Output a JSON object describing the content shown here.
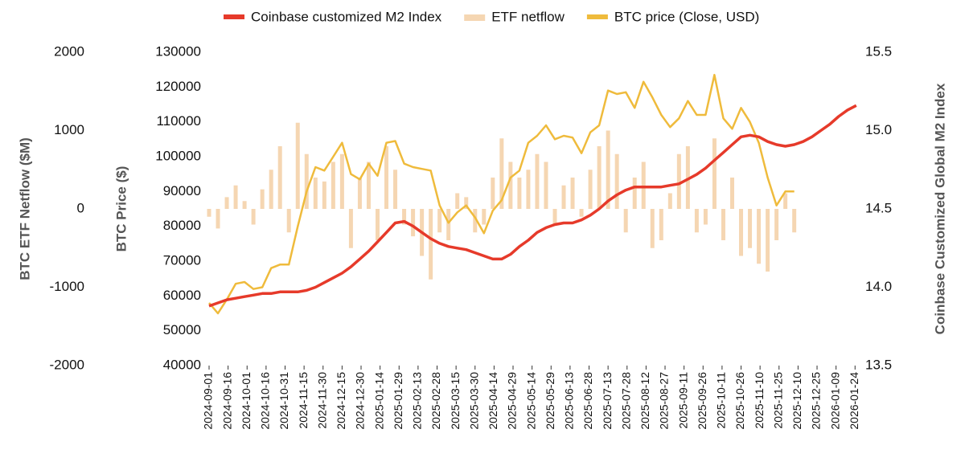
{
  "chart_data": {
    "type": "line",
    "x": [
      "2024-09-01",
      "2024-09-08",
      "2024-09-15",
      "2024-09-22",
      "2024-09-29",
      "2024-10-06",
      "2024-10-13",
      "2024-10-20",
      "2024-10-27",
      "2024-11-03",
      "2024-11-10",
      "2024-11-17",
      "2024-11-24",
      "2024-12-01",
      "2024-12-08",
      "2024-12-15",
      "2024-12-22",
      "2024-12-29",
      "2025-01-05",
      "2025-01-12",
      "2025-01-19",
      "2025-01-26",
      "2025-02-02",
      "2025-02-09",
      "2025-02-16",
      "2025-02-23",
      "2025-03-02",
      "2025-03-09",
      "2025-03-16",
      "2025-03-23",
      "2025-03-30",
      "2025-04-06",
      "2025-04-13",
      "2025-04-20",
      "2025-04-27",
      "2025-05-04",
      "2025-05-11",
      "2025-05-18",
      "2025-05-25",
      "2025-06-01",
      "2025-06-08",
      "2025-06-15",
      "2025-06-22",
      "2025-06-29",
      "2025-07-06",
      "2025-07-13",
      "2025-07-20",
      "2025-07-27",
      "2025-08-03",
      "2025-08-10",
      "2025-08-17",
      "2025-08-24",
      "2025-08-31",
      "2025-09-07",
      "2025-09-14",
      "2025-09-21",
      "2025-09-28",
      "2025-10-05",
      "2025-10-12",
      "2025-10-19",
      "2025-10-26",
      "2025-11-02",
      "2025-11-09",
      "2025-11-16",
      "2025-11-23",
      "2025-11-30",
      "2025-12-07",
      "2025-12-14",
      "2025-12-21",
      "2025-12-28",
      "2026-01-04",
      "2026-01-11",
      "2026-01-18",
      "2026-01-25"
    ],
    "xlim": [
      "2024-09-01",
      "2026-01-27"
    ],
    "xticks": [
      "2024-09-01",
      "2024-09-16",
      "2024-10-01",
      "2024-10-16",
      "2024-10-31",
      "2024-11-15",
      "2024-11-30",
      "2024-12-15",
      "2024-12-30",
      "2025-01-14",
      "2025-01-29",
      "2025-02-13",
      "2025-02-28",
      "2025-03-15",
      "2025-03-30",
      "2025-04-14",
      "2025-04-29",
      "2025-05-14",
      "2025-05-29",
      "2025-06-13",
      "2025-06-28",
      "2025-07-13",
      "2025-07-28",
      "2025-08-12",
      "2025-08-27",
      "2025-09-11",
      "2025-09-26",
      "2025-10-11",
      "2025-10-26",
      "2025-11-10",
      "2025-11-25",
      "2025-12-10",
      "2025-12-25",
      "2026-01-09",
      "2026-01-24"
    ],
    "ylabel": "BTC ETF Netflow ($M)",
    "ylim": [
      -2000,
      2000
    ],
    "yticks": [
      -2000,
      -1000,
      0,
      1000,
      2000
    ],
    "y2label": "BTC Price ($)",
    "y2lim": [
      40000,
      130000
    ],
    "y2ticks": [
      40000,
      50000,
      60000,
      70000,
      80000,
      90000,
      100000,
      110000,
      120000,
      130000
    ],
    "y3label": "Coinbase Customized Global M2 Index",
    "y3lim": [
      13.5,
      15.5
    ],
    "y3ticks": [
      13.5,
      {
        "value": 14,
        "label": "14.0"
      },
      14.5,
      {
        "value": 15,
        "label": "15.0"
      },
      15.5
    ],
    "legend": "top",
    "series": [
      {
        "name": "Coinbase customized M2 Index",
        "type": "line",
        "axis": "y3",
        "color": "#e63a2a",
        "values": [
          13.88,
          13.9,
          13.92,
          13.93,
          13.94,
          13.95,
          13.96,
          13.96,
          13.97,
          13.97,
          13.97,
          13.98,
          14.0,
          14.03,
          14.06,
          14.09,
          14.13,
          14.18,
          14.23,
          14.29,
          14.35,
          14.41,
          14.42,
          14.39,
          14.35,
          14.31,
          14.28,
          14.26,
          14.25,
          14.24,
          14.22,
          14.2,
          14.18,
          14.18,
          14.21,
          14.26,
          14.3,
          14.35,
          14.38,
          14.4,
          14.41,
          14.41,
          14.43,
          14.46,
          14.5,
          14.55,
          14.59,
          14.62,
          14.64,
          14.64,
          14.64,
          14.64,
          14.65,
          14.66,
          14.69,
          14.72,
          14.76,
          14.81,
          14.86,
          14.91,
          14.96,
          14.97,
          14.96,
          14.93,
          14.91,
          14.9,
          14.91,
          14.93,
          14.96,
          15.0,
          15.04,
          15.09,
          15.13,
          15.16
        ]
      },
      {
        "name": "ETF netflow",
        "type": "bar",
        "axis": "y",
        "color": "#f5d6b2",
        "values": [
          -100,
          -250,
          150,
          300,
          100,
          -200,
          250,
          500,
          800,
          -300,
          1100,
          700,
          400,
          350,
          600,
          700,
          -500,
          400,
          600,
          -400,
          800,
          500,
          -200,
          -350,
          -600,
          -900,
          -300,
          -400,
          200,
          150,
          -300,
          -200,
          400,
          900,
          600,
          400,
          500,
          700,
          600,
          -200,
          300,
          400,
          -100,
          500,
          800,
          1000,
          700,
          -300,
          400,
          600,
          -500,
          -400,
          200,
          700,
          800,
          -300,
          -200,
          900,
          -400,
          400,
          -600,
          -500,
          -700,
          -800,
          -400,
          200,
          -300,
          null,
          null,
          null,
          null,
          null,
          null,
          null
        ]
      },
      {
        "name": "BTC price (Close, USD)",
        "type": "line",
        "axis": "y2",
        "color": "#efbb3c",
        "values": [
          58000,
          55000,
          59000,
          63500,
          64000,
          62000,
          62500,
          68000,
          69000,
          69000,
          80000,
          90000,
          97000,
          96000,
          100000,
          104000,
          95000,
          93500,
          98000,
          94500,
          104000,
          104500,
          98000,
          97000,
          96500,
          96000,
          86000,
          81000,
          84000,
          86000,
          82500,
          78000,
          84500,
          87500,
          94000,
          96000,
          104000,
          106000,
          109000,
          105000,
          106000,
          105500,
          101000,
          107000,
          109000,
          119000,
          118000,
          118500,
          114000,
          121500,
          117000,
          112000,
          108500,
          111000,
          116000,
          112000,
          112000,
          123500,
          111000,
          108000,
          114000,
          110000,
          104000,
          94000,
          86000,
          90000,
          90000,
          null,
          null,
          null,
          null,
          null,
          null,
          null
        ]
      }
    ]
  }
}
